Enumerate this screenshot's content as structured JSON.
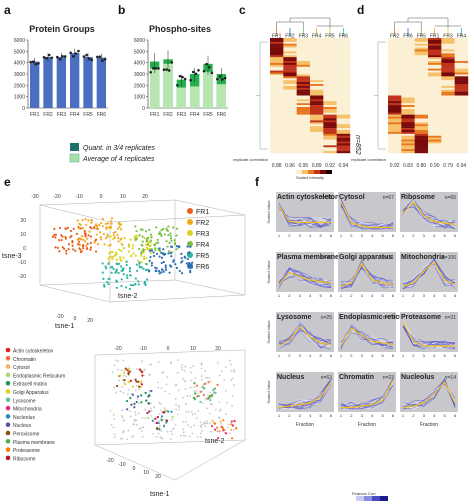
{
  "panels": {
    "a": "a",
    "b": "b",
    "c": "c",
    "d": "d",
    "e": "e",
    "f": "f"
  },
  "legend_ab": [
    "Quant. in 3/4 replicates",
    "Average of 4 replicates"
  ],
  "chart_data": [
    {
      "type": "bar",
      "title": "Protein Groups",
      "categories": [
        "FR1",
        "FR2",
        "FR3",
        "FR4",
        "FR5",
        "FR6"
      ],
      "values": [
        4100,
        4500,
        4500,
        4850,
        4500,
        4450
      ],
      "ylim": [
        0,
        6000
      ],
      "yticks": [
        "0",
        "1000",
        "2000",
        "3000",
        "4000",
        "5000",
        "6000"
      ],
      "color": "#4a6fc0"
    },
    {
      "type": "bar",
      "title": "Phospho-sites",
      "categories": [
        "FR1",
        "FR2",
        "FR3",
        "FR4",
        "FR5",
        "FR6"
      ],
      "series": [
        {
          "values": [
            4100,
            4300,
            2500,
            3000,
            3900,
            3000
          ],
          "color": "#22b14c"
        },
        {
          "values": [
            3500,
            3900,
            1800,
            1900,
            3200,
            2100
          ],
          "color": "#b8e6b0"
        }
      ],
      "ylim": [
        0,
        6000
      ],
      "yticks": [
        "0",
        "1000",
        "2000",
        "3000",
        "4000",
        "5000",
        "6000"
      ]
    },
    {
      "type": "heatmap",
      "columns": [
        "FR1",
        "FR2",
        "FR3",
        "FR4",
        "FR5",
        "FR6"
      ],
      "row_count_label": "n=852",
      "correlation_label": "replicate correlation",
      "correlations": [
        "0.88",
        "0.96",
        "0.95",
        "0.89",
        "0.92",
        "0.94"
      ],
      "scale_label": "Scaled intensity"
    },
    {
      "type": "heatmap",
      "columns": [
        "FR2",
        "FR6",
        "FR5",
        "FR1",
        "FR3",
        "FR4"
      ],
      "row_count_label": "n=1457",
      "correlation_label": "replicate correlation",
      "correlations": [
        "0.92",
        "0.83",
        "0.80",
        "0.90",
        "0.79",
        "0.94"
      ]
    },
    {
      "type": "scatter",
      "axes": [
        "tsne-1",
        "tsne-2",
        "tsne-3"
      ],
      "tick_top": [
        "-30",
        "-20",
        "-10",
        "0",
        "10",
        "20"
      ],
      "tick_left": [
        "20",
        "10",
        "0",
        "-10",
        "-20"
      ],
      "tick_bottom": [
        "-20",
        "0",
        "20"
      ],
      "series": [
        {
          "name": "FR1",
          "color": "#e8601c"
        },
        {
          "name": "FR2",
          "color": "#f2a81d"
        },
        {
          "name": "FR3",
          "color": "#d9d420"
        },
        {
          "name": "FR4",
          "color": "#7bc043"
        },
        {
          "name": "FR5",
          "color": "#2bb3a3"
        },
        {
          "name": "FR6",
          "color": "#2a6fb5"
        }
      ]
    },
    {
      "type": "scatter",
      "axes": [
        "tsne-1",
        "tsne-2"
      ],
      "tick_top": [
        "-20",
        "-10",
        "0",
        "10",
        "20"
      ],
      "tick_bottom": [
        "-20",
        "-10",
        "0",
        "10",
        "20"
      ],
      "series": [
        {
          "name": "Actin cytoskeleton",
          "color": "#e41a1c"
        },
        {
          "name": "Chromatin",
          "color": "#f46d43"
        },
        {
          "name": "Cytosol",
          "color": "#fdae61"
        },
        {
          "name": "Endoplasmic Reticulum",
          "color": "#a6d96a"
        },
        {
          "name": "Extracell matrix",
          "color": "#1a9850"
        },
        {
          "name": "Golgi Apparatus",
          "color": "#d9d420"
        },
        {
          "name": "Lysosome",
          "color": "#66c2a5"
        },
        {
          "name": "Mitochondria",
          "color": "#e7298a"
        },
        {
          "name": "Nucleolus",
          "color": "#3288bd"
        },
        {
          "name": "Nucleus",
          "color": "#5e4fa2"
        },
        {
          "name": "Peroxisome",
          "color": "#8c510a"
        },
        {
          "name": "Plasma membrane",
          "color": "#4daf4a"
        },
        {
          "name": "Proteasome",
          "color": "#ff7f00"
        },
        {
          "name": "Ribosome",
          "color": "#b2182b"
        }
      ]
    },
    {
      "type": "line",
      "xlabel": "Fraction",
      "ylabel": "Scaled Value",
      "x": [
        1,
        2,
        3,
        4,
        5,
        6
      ],
      "colorbar_label": "Pearson Corr.",
      "panels": [
        {
          "name": "Actin cytoskeleton",
          "n": "n=31",
          "profile": [
            0.75,
            0.25,
            0.22,
            0.22,
            0.22,
            0.22
          ]
        },
        {
          "name": "Cytosol",
          "n": "n=67",
          "profile": [
            0.9,
            0.2,
            0.1,
            0.05,
            0.05,
            0.05
          ]
        },
        {
          "name": "Ribosome",
          "n": "n=66",
          "profile": [
            0.5,
            0.9,
            0.45,
            0.25,
            0.2,
            0.15
          ]
        },
        {
          "name": "Plasma membrane",
          "n": "n=46",
          "profile": [
            0.15,
            0.55,
            0.4,
            0.3,
            0.25,
            0.2
          ]
        },
        {
          "name": "Golgi apparatus",
          "n": "n=21",
          "profile": [
            0.1,
            0.2,
            0.85,
            0.3,
            0.2,
            0.15
          ]
        },
        {
          "name": "Mitochondria",
          "n": "n=106",
          "profile": [
            0.1,
            0.2,
            0.6,
            0.9,
            0.3,
            0.15
          ]
        },
        {
          "name": "Lysosome",
          "n": "n=25",
          "profile": [
            0.1,
            0.3,
            0.75,
            0.4,
            0.2,
            0.15
          ]
        },
        {
          "name": "Endoplasmic reticulum",
          "n": "n=73",
          "profile": [
            0.1,
            0.7,
            0.45,
            0.25,
            0.2,
            0.15
          ]
        },
        {
          "name": "Proteasome",
          "n": "n=31",
          "profile": [
            0.9,
            0.25,
            0.1,
            0.1,
            0.1,
            0.1
          ]
        },
        {
          "name": "Nucleus",
          "n": "n=63",
          "profile": [
            0.05,
            0.1,
            0.15,
            0.2,
            0.4,
            0.9
          ]
        },
        {
          "name": "Chromatin",
          "n": "n=23",
          "profile": [
            0.05,
            0.05,
            0.1,
            0.15,
            0.3,
            0.95
          ]
        },
        {
          "name": "Nucleolus",
          "n": "n=14",
          "profile": [
            0.05,
            0.1,
            0.2,
            0.5,
            0.9,
            0.2
          ]
        }
      ]
    }
  ]
}
